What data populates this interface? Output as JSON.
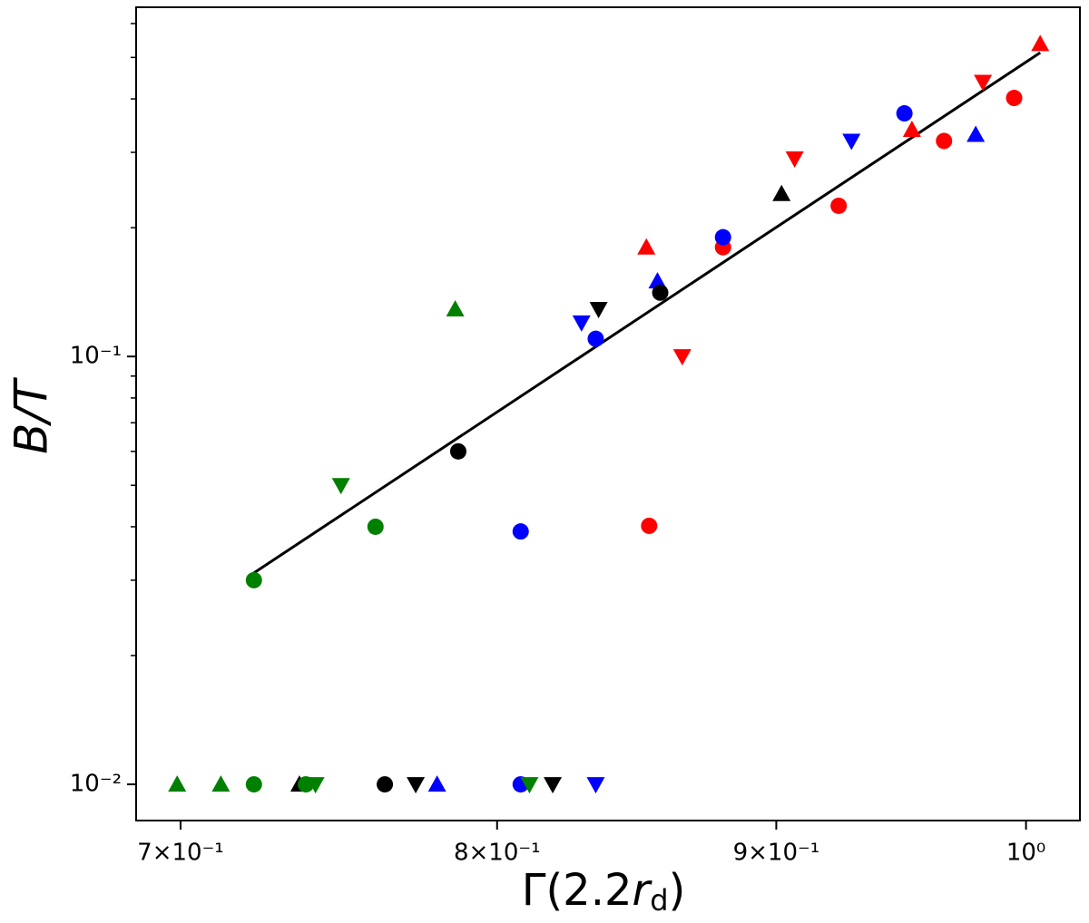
{
  "chart_data": {
    "type": "scatter",
    "xlabel": [
      "Γ(2.2",
      "r",
      "d",
      ")"
    ],
    "ylabel": "B/T",
    "xscale": "log",
    "yscale": "log",
    "xlim": [
      0.687,
      1.023
    ],
    "ylim": [
      0.00823,
      0.655
    ],
    "xticks": [
      {
        "value": 0.7,
        "label": "7×10⁻¹"
      },
      {
        "value": 0.8,
        "label": "8×10⁻¹"
      },
      {
        "value": 0.9,
        "label": "9×10⁻¹"
      },
      {
        "value": 1.0,
        "label": "10⁰"
      }
    ],
    "yticks": [
      {
        "value": 0.01,
        "label": "10⁻²"
      },
      {
        "value": 0.1,
        "label": "10⁻¹"
      }
    ],
    "yticks_minor": [
      0.02,
      0.03,
      0.04,
      0.05,
      0.06,
      0.07,
      0.08,
      0.09,
      0.2,
      0.3,
      0.4,
      0.5,
      0.6
    ],
    "series": [
      {
        "color": "#ff0000",
        "marker": "circle",
        "x": [
          0.853,
          0.88,
          0.924,
          0.966,
          0.995
        ],
        "y": [
          0.0402,
          0.18,
          0.225,
          0.319,
          0.402
        ]
      },
      {
        "color": "#ff0000",
        "marker": "triangle-up",
        "x": [
          0.852,
          0.953,
          1.006
        ],
        "y": [
          0.18,
          0.339,
          0.538
        ]
      },
      {
        "color": "#ff0000",
        "marker": "triangle-down",
        "x": [
          0.865,
          0.907,
          0.982
        ],
        "y": [
          0.1,
          0.29,
          0.438
        ]
      },
      {
        "color": "#0000ff",
        "marker": "circle",
        "x": [
          0.808,
          0.808,
          0.834,
          0.88,
          0.95
        ],
        "y": [
          0.039,
          0.01,
          0.11,
          0.19,
          0.37
        ]
      },
      {
        "color": "#0000ff",
        "marker": "triangle-up",
        "x": [
          0.78,
          0.856,
          0.979
        ],
        "y": [
          0.01,
          0.15,
          0.33
        ]
      },
      {
        "color": "#0000ff",
        "marker": "triangle-down",
        "x": [
          0.829,
          0.834,
          0.929
        ],
        "y": [
          0.12,
          0.01,
          0.319
        ]
      },
      {
        "color": "#000000",
        "marker": "circle",
        "x": [
          0.763,
          0.787,
          0.857
        ],
        "y": [
          0.01,
          0.06,
          0.141
        ]
      },
      {
        "color": "#000000",
        "marker": "triangle-up",
        "x": [
          0.736,
          0.902
        ],
        "y": [
          0.01,
          0.24
        ]
      },
      {
        "color": "#000000",
        "marker": "triangle-down",
        "x": [
          0.773,
          0.819,
          0.835
        ],
        "y": [
          0.01,
          0.01,
          0.129
        ]
      },
      {
        "color": "#008000",
        "marker": "circle",
        "x": [
          0.722,
          0.722,
          0.738,
          0.76
        ],
        "y": [
          0.01,
          0.03,
          0.01,
          0.04
        ]
      },
      {
        "color": "#008000",
        "marker": "triangle-up",
        "x": [
          0.699,
          0.712,
          0.786
        ],
        "y": [
          0.01,
          0.01,
          0.129
        ]
      },
      {
        "color": "#008000",
        "marker": "triangle-down",
        "x": [
          0.749,
          0.741,
          0.811
        ],
        "y": [
          0.05,
          0.01,
          0.01
        ]
      }
    ],
    "fit_line": {
      "color": "#000000",
      "x": [
        0.722,
        1.006
      ],
      "y": [
        0.0312,
        0.513
      ]
    }
  }
}
